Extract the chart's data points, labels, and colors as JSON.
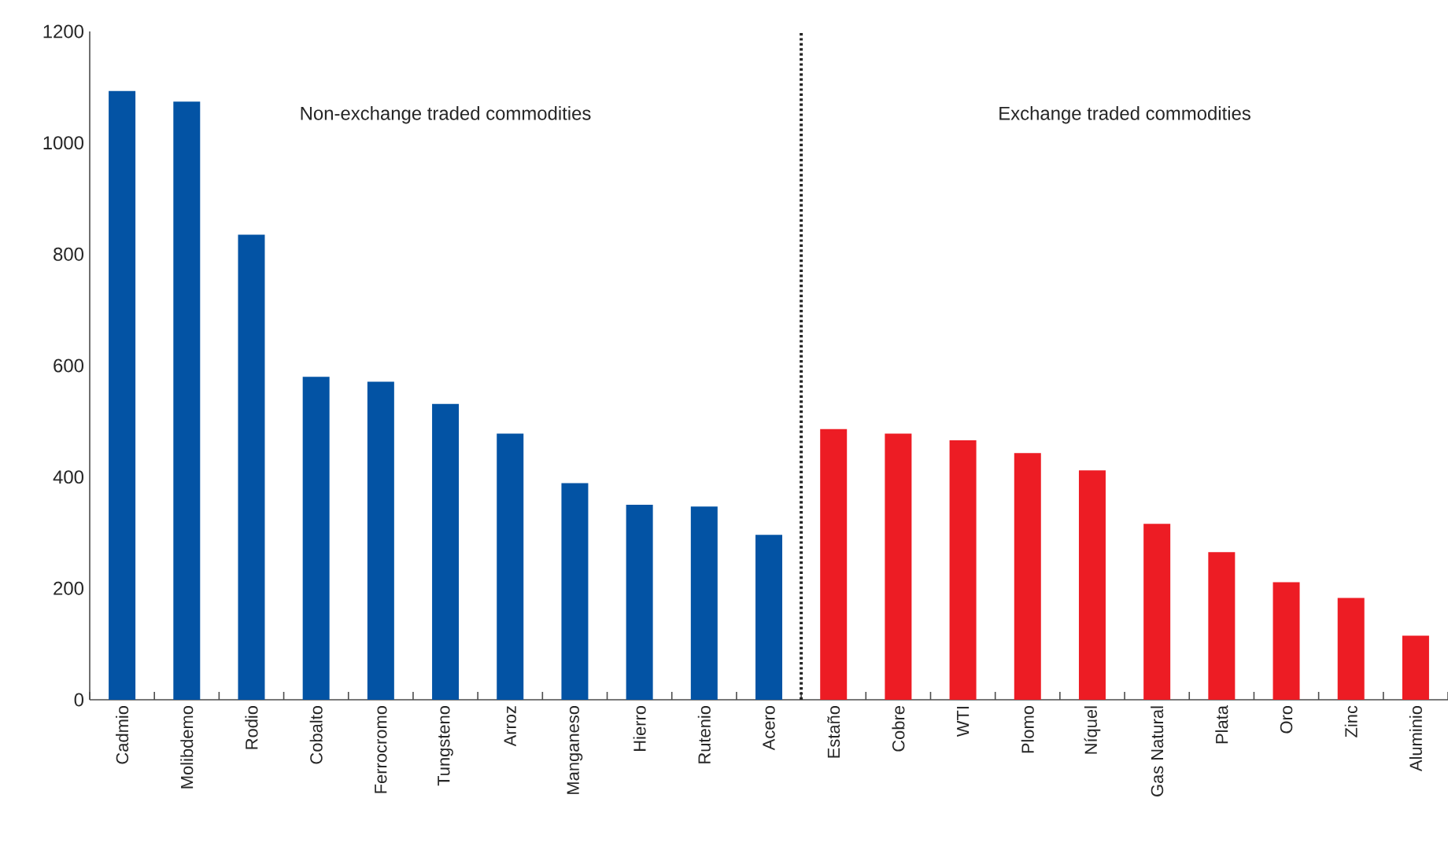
{
  "chart_data": {
    "type": "bar",
    "categories": [
      "Cadmio",
      "Molibdemo",
      "Rodio",
      "Cobalto",
      "Ferrocromo",
      "Tungsteno",
      "Arroz",
      "Manganeso",
      "Hierro",
      "Rutenio",
      "Acero",
      "Estaño",
      "Cobre",
      "WTI",
      "Plomo",
      "Níquel",
      "Gas Natural",
      "Plata",
      "Oro",
      "Zinc",
      "Aluminio"
    ],
    "values": [
      1093,
      1074,
      835,
      580,
      571,
      531,
      478,
      389,
      350,
      347,
      296,
      486,
      478,
      466,
      443,
      412,
      316,
      265,
      211,
      183,
      115
    ],
    "colors": [
      "#0353a4",
      "#0353a4",
      "#0353a4",
      "#0353a4",
      "#0353a4",
      "#0353a4",
      "#0353a4",
      "#0353a4",
      "#0353a4",
      "#0353a4",
      "#0353a4",
      "#ed1c24",
      "#ed1c24",
      "#ed1c24",
      "#ed1c24",
      "#ed1c24",
      "#ed1c24",
      "#ed1c24",
      "#ed1c24",
      "#ed1c24",
      "#ed1c24"
    ],
    "ylim": [
      0,
      1200
    ],
    "yticks": [
      0,
      200,
      400,
      600,
      800,
      1000,
      1200
    ],
    "annotations": [
      "Non-exchange traded commodities",
      "Exchange traded commodities"
    ],
    "grid": false
  }
}
